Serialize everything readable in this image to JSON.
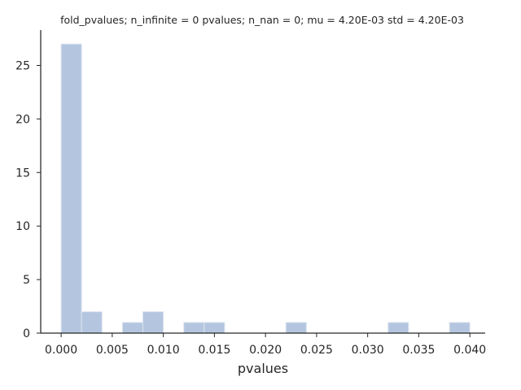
{
  "chart_data": {
    "type": "bar",
    "title": "fold_pvalues; n_infinite = 0 pvalues; n_nan = 0; mu = 4.20E-03 std = 4.20E-03",
    "xlabel": "pvalues",
    "ylabel": "",
    "xlim": [
      -0.002,
      0.0415
    ],
    "ylim": [
      0,
      28.3
    ],
    "grid": false,
    "bar_color": "#b4c6df",
    "bar_edge_color": "#dde5f0",
    "x_ticks": [
      0.0,
      0.005,
      0.01,
      0.015,
      0.02,
      0.025,
      0.03,
      0.035,
      0.04
    ],
    "x_tick_labels": [
      "0.000",
      "0.005",
      "0.010",
      "0.015",
      "0.020",
      "0.025",
      "0.030",
      "0.035",
      "0.040"
    ],
    "y_ticks": [
      0,
      5,
      10,
      15,
      20,
      25
    ],
    "y_tick_labels": [
      "0",
      "5",
      "10",
      "15",
      "20",
      "25"
    ],
    "bin_edges": [
      0.0,
      0.002,
      0.004,
      0.006,
      0.008,
      0.01,
      0.012,
      0.014,
      0.016,
      0.018,
      0.02,
      0.022,
      0.024,
      0.026,
      0.028,
      0.03,
      0.032,
      0.034,
      0.036,
      0.038,
      0.04
    ],
    "counts": [
      27,
      2,
      0,
      1,
      2,
      0,
      1,
      1,
      0,
      0,
      0,
      1,
      0,
      0,
      0,
      0,
      1,
      0,
      0,
      1
    ]
  }
}
